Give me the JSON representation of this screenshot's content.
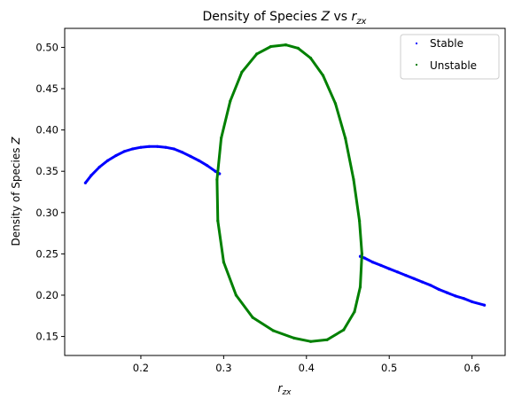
{
  "chart_data": {
    "type": "scatter",
    "title_parts": [
      "Density of Species ",
      "Z",
      " vs ",
      "r",
      "zx"
    ],
    "xlabel_parts": [
      "r",
      "zx"
    ],
    "ylabel_parts": [
      "Density of Species ",
      "Z"
    ],
    "xlim": [
      0.108,
      0.64
    ],
    "ylim": [
      0.127,
      0.523
    ],
    "xticks": [
      0.2,
      0.3,
      0.4,
      0.5,
      0.6
    ],
    "xtick_labels": [
      "0.2",
      "0.3",
      "0.4",
      "0.5",
      "0.6"
    ],
    "yticks": [
      0.15,
      0.2,
      0.25,
      0.3,
      0.35,
      0.4,
      0.45,
      0.5
    ],
    "ytick_labels": [
      "0.15",
      "0.20",
      "0.25",
      "0.30",
      "0.35",
      "0.40",
      "0.45",
      "0.50"
    ],
    "grid": false,
    "legend_position": "top-right",
    "series": [
      {
        "name": "Stable",
        "color": "#0000ff",
        "points": [
          [
            0.133,
            0.336
          ],
          [
            0.14,
            0.345
          ],
          [
            0.15,
            0.355
          ],
          [
            0.16,
            0.363
          ],
          [
            0.17,
            0.369
          ],
          [
            0.18,
            0.374
          ],
          [
            0.19,
            0.377
          ],
          [
            0.2,
            0.379
          ],
          [
            0.21,
            0.38
          ],
          [
            0.22,
            0.38
          ],
          [
            0.23,
            0.379
          ],
          [
            0.24,
            0.377
          ],
          [
            0.25,
            0.373
          ],
          [
            0.26,
            0.368
          ],
          [
            0.27,
            0.363
          ],
          [
            0.28,
            0.357
          ],
          [
            0.29,
            0.35
          ],
          [
            0.295,
            0.347
          ],
          [
            0.465,
            0.247
          ],
          [
            0.47,
            0.245
          ],
          [
            0.48,
            0.24
          ],
          [
            0.49,
            0.236
          ],
          [
            0.5,
            0.232
          ],
          [
            0.51,
            0.228
          ],
          [
            0.52,
            0.224
          ],
          [
            0.53,
            0.22
          ],
          [
            0.54,
            0.216
          ],
          [
            0.55,
            0.212
          ],
          [
            0.56,
            0.207
          ],
          [
            0.57,
            0.203
          ],
          [
            0.58,
            0.199
          ],
          [
            0.59,
            0.196
          ],
          [
            0.6,
            0.192
          ],
          [
            0.615,
            0.188
          ]
        ]
      },
      {
        "name": "Unstable",
        "color": "#008000",
        "points": [
          [
            0.375,
            0.503
          ],
          [
            0.39,
            0.499
          ],
          [
            0.405,
            0.487
          ],
          [
            0.42,
            0.466
          ],
          [
            0.435,
            0.432
          ],
          [
            0.447,
            0.39
          ],
          [
            0.457,
            0.34
          ],
          [
            0.464,
            0.29
          ],
          [
            0.467,
            0.25
          ],
          [
            0.465,
            0.21
          ],
          [
            0.458,
            0.18
          ],
          [
            0.445,
            0.158
          ],
          [
            0.425,
            0.146
          ],
          [
            0.405,
            0.144
          ],
          [
            0.385,
            0.148
          ],
          [
            0.36,
            0.157
          ],
          [
            0.335,
            0.173
          ],
          [
            0.315,
            0.2
          ],
          [
            0.3,
            0.24
          ],
          [
            0.293,
            0.29
          ],
          [
            0.292,
            0.34
          ],
          [
            0.297,
            0.39
          ],
          [
            0.308,
            0.435
          ],
          [
            0.322,
            0.47
          ],
          [
            0.34,
            0.492
          ],
          [
            0.357,
            0.501
          ],
          [
            0.375,
            0.503
          ]
        ]
      }
    ]
  }
}
